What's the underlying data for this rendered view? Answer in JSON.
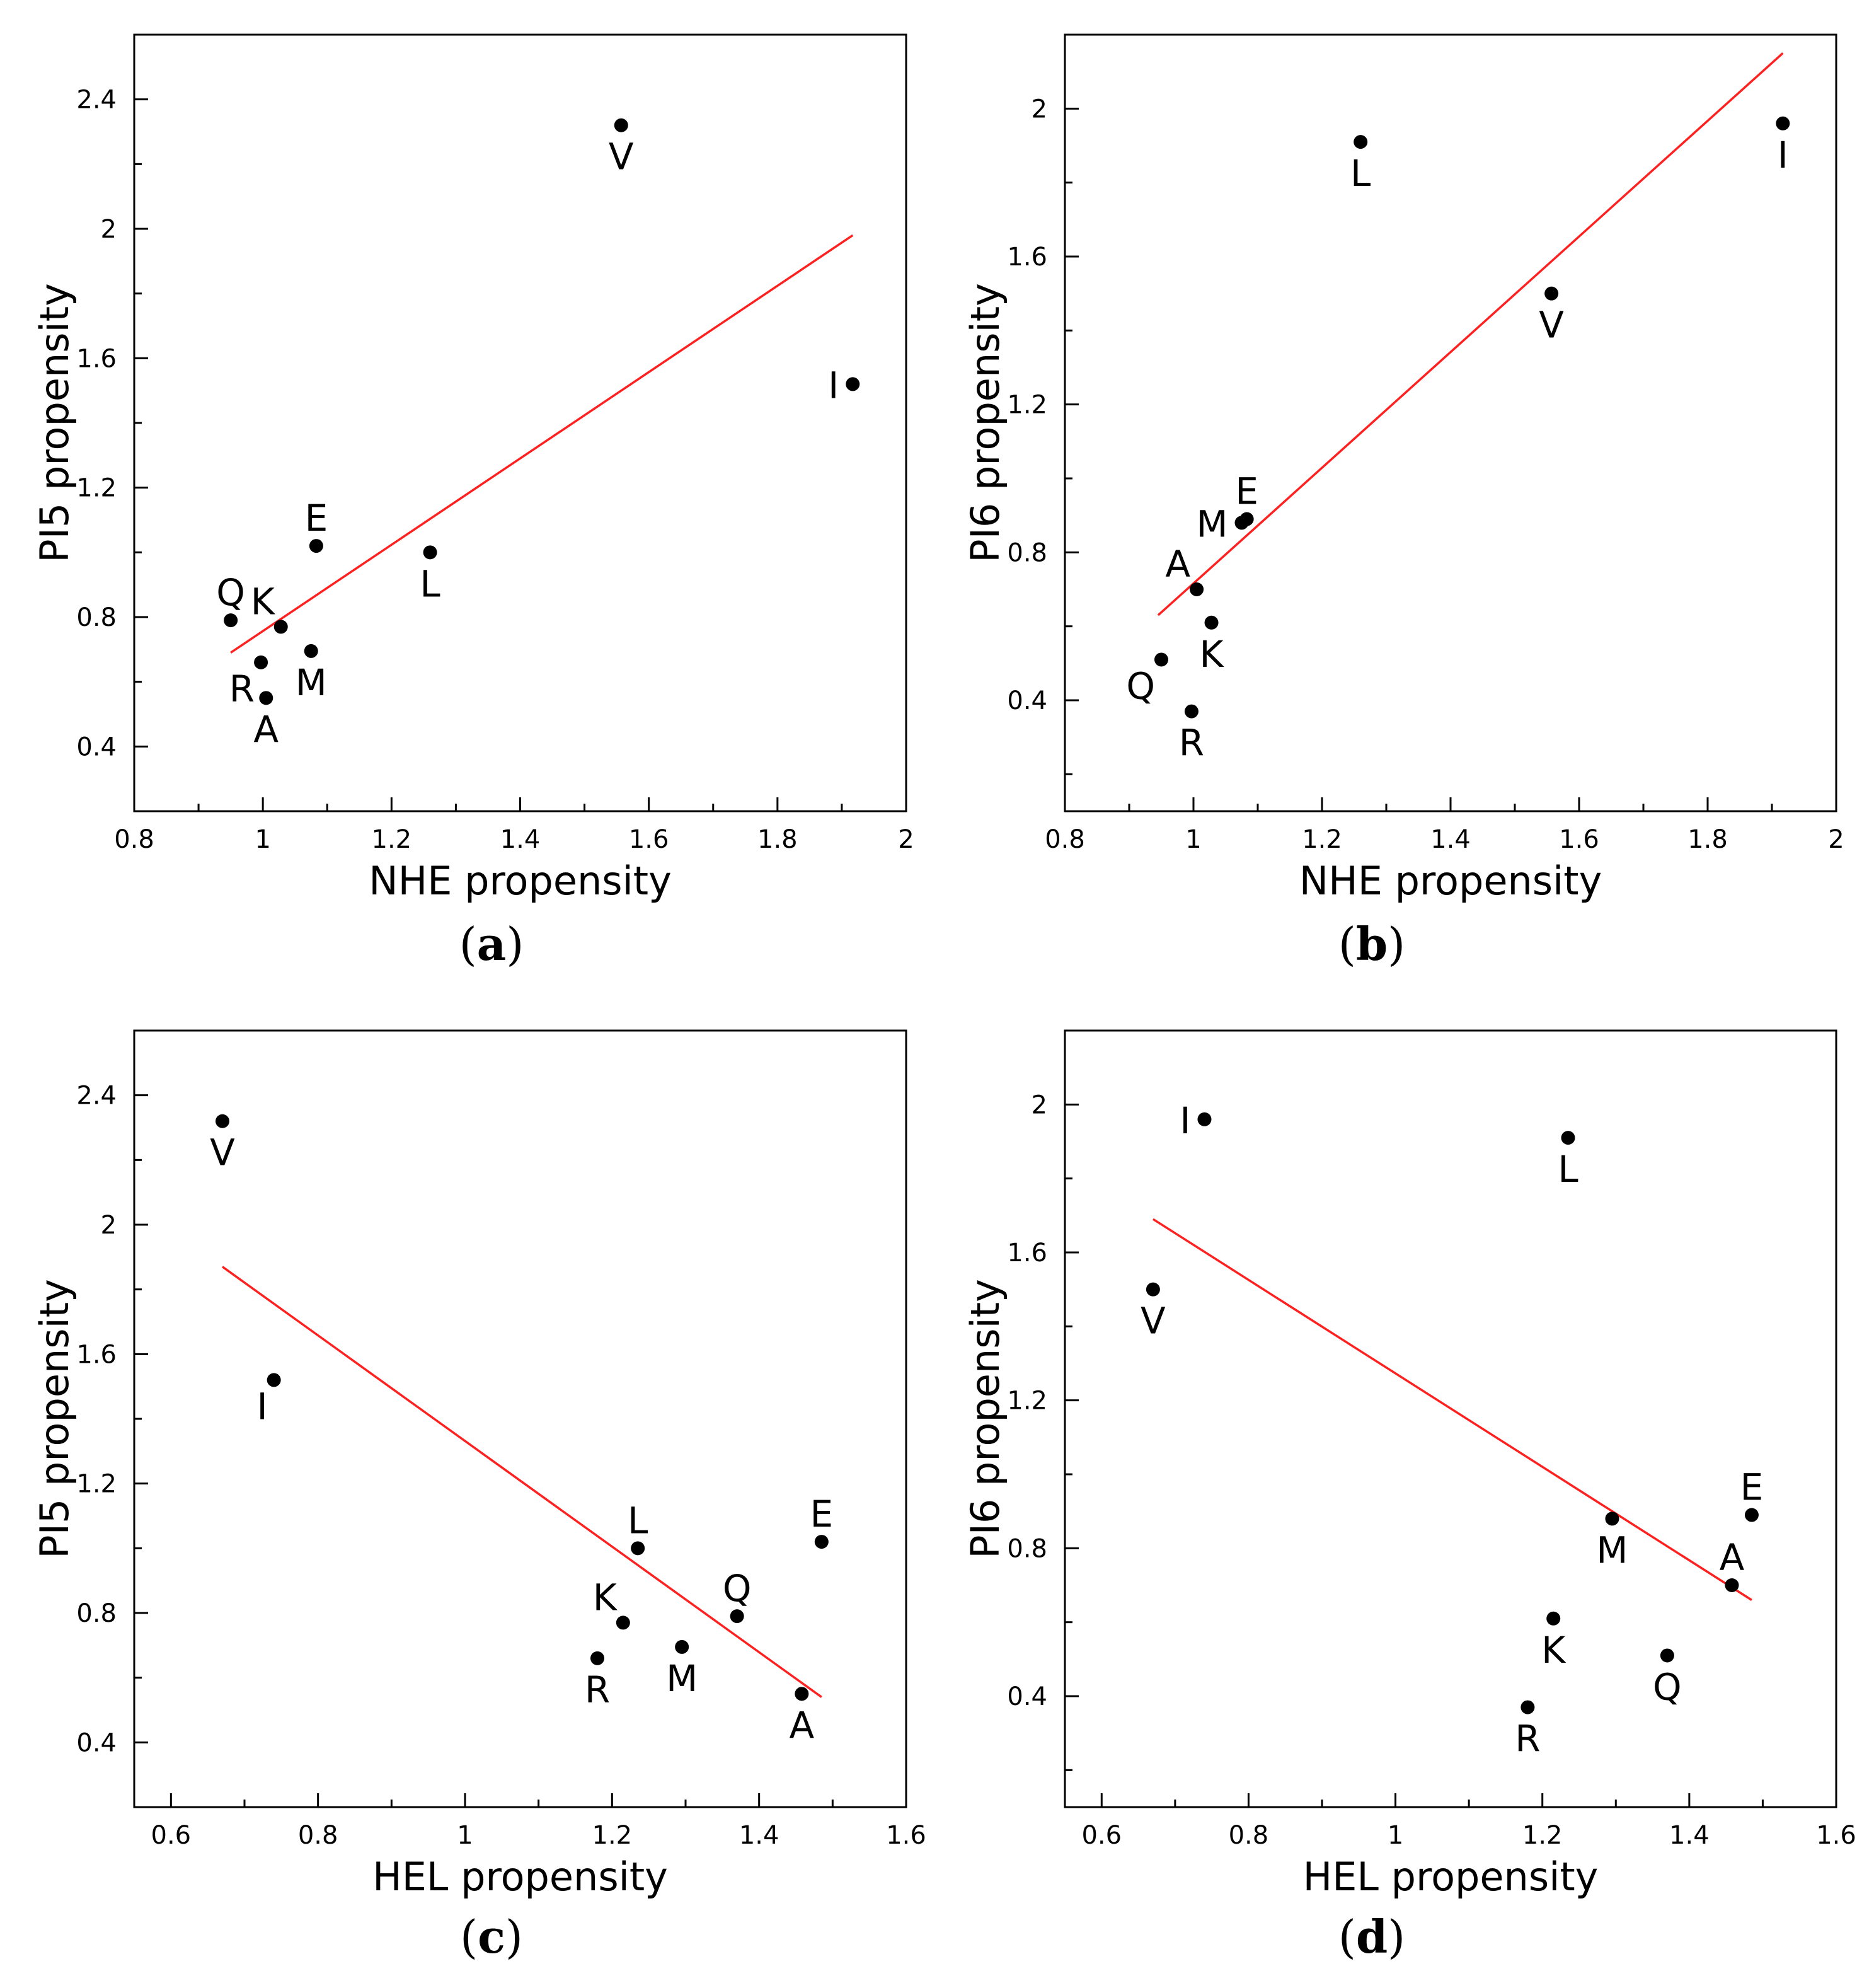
{
  "colors": {
    "fit_line": "#ff2020",
    "points": "#000000",
    "axes": "#000000"
  },
  "chart_data": [
    {
      "type": "scatter",
      "panel_label": "a",
      "xlabel": "NHE propensity",
      "ylabel": "PI5 propensity",
      "xlim": [
        0.8,
        2.0
      ],
      "ylim": [
        0.2,
        2.6
      ],
      "xticks": [
        0.8,
        1.0,
        1.2,
        1.4,
        1.6,
        1.8,
        2.0
      ],
      "xtick_labels": [
        "0.8",
        "1",
        "1.2",
        "1.4",
        "1.6",
        "1.8",
        "2"
      ],
      "yticks": [
        0.4,
        0.8,
        1.2,
        1.6,
        2.0,
        2.4
      ],
      "ytick_labels": [
        "0.4",
        "0.8",
        "1.2",
        "1.6",
        "2",
        "2.4"
      ],
      "points": [
        {
          "label": "V",
          "x": 1.557,
          "y": 2.32,
          "pos": "below"
        },
        {
          "label": "I",
          "x": 1.917,
          "y": 1.52,
          "pos": "left"
        },
        {
          "label": "L",
          "x": 1.26,
          "y": 1.0,
          "pos": "below"
        },
        {
          "label": "E",
          "x": 1.083,
          "y": 1.02,
          "pos": "above"
        },
        {
          "label": "Q",
          "x": 0.95,
          "y": 0.79,
          "pos": "above"
        },
        {
          "label": "K",
          "x": 1.028,
          "y": 0.77,
          "pos": "aboveleft"
        },
        {
          "label": "R",
          "x": 0.997,
          "y": 0.66,
          "pos": "belowleft"
        },
        {
          "label": "M",
          "x": 1.075,
          "y": 0.695,
          "pos": "below"
        },
        {
          "label": "A",
          "x": 1.005,
          "y": 0.55,
          "pos": "below"
        }
      ],
      "fit_line": {
        "x": [
          0.95,
          1.917
        ],
        "y": [
          0.69,
          1.98
        ]
      }
    },
    {
      "type": "scatter",
      "panel_label": "b",
      "xlabel": "NHE propensity",
      "ylabel": "PI6 propensity",
      "xlim": [
        0.8,
        2.0
      ],
      "ylim": [
        0.1,
        2.2
      ],
      "xticks": [
        0.8,
        1.0,
        1.2,
        1.4,
        1.6,
        1.8,
        2.0
      ],
      "xtick_labels": [
        "0.8",
        "1",
        "1.2",
        "1.4",
        "1.6",
        "1.8",
        "2"
      ],
      "yticks": [
        0.4,
        0.8,
        1.2,
        1.6,
        2.0
      ],
      "ytick_labels": [
        "0.4",
        "0.8",
        "1.2",
        "1.6",
        "2"
      ],
      "points": [
        {
          "label": "L",
          "x": 1.26,
          "y": 1.91,
          "pos": "below"
        },
        {
          "label": "I",
          "x": 1.917,
          "y": 1.96,
          "pos": "below"
        },
        {
          "label": "V",
          "x": 1.557,
          "y": 1.5,
          "pos": "below"
        },
        {
          "label": "E",
          "x": 1.083,
          "y": 0.89,
          "pos": "above"
        },
        {
          "label": "M",
          "x": 1.075,
          "y": 0.88,
          "pos": "left"
        },
        {
          "label": "A",
          "x": 1.005,
          "y": 0.7,
          "pos": "aboveleft"
        },
        {
          "label": "K",
          "x": 1.028,
          "y": 0.61,
          "pos": "below"
        },
        {
          "label": "Q",
          "x": 0.95,
          "y": 0.51,
          "pos": "belowleft"
        },
        {
          "label": "R",
          "x": 0.997,
          "y": 0.37,
          "pos": "below"
        }
      ],
      "fit_line": {
        "x": [
          0.945,
          1.917
        ],
        "y": [
          0.63,
          2.15
        ]
      }
    },
    {
      "type": "scatter",
      "panel_label": "c",
      "xlabel": "HEL propensity",
      "ylabel": "PI5 propensity",
      "xlim": [
        0.55,
        1.6
      ],
      "ylim": [
        0.2,
        2.6
      ],
      "xticks": [
        0.6,
        0.8,
        1.0,
        1.2,
        1.4,
        1.6
      ],
      "xtick_labels": [
        "0.6",
        "0.8",
        "1",
        "1.2",
        "1.4",
        "1.6"
      ],
      "yticks": [
        0.4,
        0.8,
        1.2,
        1.6,
        2.0,
        2.4
      ],
      "ytick_labels": [
        "0.4",
        "0.8",
        "1.2",
        "1.6",
        "2",
        "2.4"
      ],
      "points": [
        {
          "label": "V",
          "x": 0.67,
          "y": 2.32,
          "pos": "below"
        },
        {
          "label": "I",
          "x": 0.74,
          "y": 1.52,
          "pos": "belowleft"
        },
        {
          "label": "L",
          "x": 1.235,
          "y": 1.0,
          "pos": "above"
        },
        {
          "label": "E",
          "x": 1.485,
          "y": 1.02,
          "pos": "above"
        },
        {
          "label": "K",
          "x": 1.215,
          "y": 0.77,
          "pos": "aboveleft"
        },
        {
          "label": "Q",
          "x": 1.37,
          "y": 0.79,
          "pos": "above"
        },
        {
          "label": "R",
          "x": 1.18,
          "y": 0.66,
          "pos": "below"
        },
        {
          "label": "M",
          "x": 1.295,
          "y": 0.695,
          "pos": "below"
        },
        {
          "label": "A",
          "x": 1.458,
          "y": 0.55,
          "pos": "below"
        }
      ],
      "fit_line": {
        "x": [
          0.67,
          1.485
        ],
        "y": [
          1.87,
          0.54
        ]
      }
    },
    {
      "type": "scatter",
      "panel_label": "d",
      "xlabel": "HEL propensity",
      "ylabel": "PI6 propensity",
      "xlim": [
        0.55,
        1.6
      ],
      "ylim": [
        0.1,
        2.2
      ],
      "xticks": [
        0.6,
        0.8,
        1.0,
        1.2,
        1.4,
        1.6
      ],
      "xtick_labels": [
        "0.6",
        "0.8",
        "1",
        "1.2",
        "1.4",
        "1.6"
      ],
      "yticks": [
        0.4,
        0.8,
        1.2,
        1.6,
        2.0
      ],
      "ytick_labels": [
        "0.4",
        "0.8",
        "1.2",
        "1.6",
        "2"
      ],
      "points": [
        {
          "label": "I",
          "x": 0.74,
          "y": 1.96,
          "pos": "left"
        },
        {
          "label": "L",
          "x": 1.235,
          "y": 1.91,
          "pos": "below"
        },
        {
          "label": "V",
          "x": 0.67,
          "y": 1.5,
          "pos": "below"
        },
        {
          "label": "E",
          "x": 1.485,
          "y": 0.89,
          "pos": "above"
        },
        {
          "label": "M",
          "x": 1.295,
          "y": 0.88,
          "pos": "below"
        },
        {
          "label": "A",
          "x": 1.458,
          "y": 0.7,
          "pos": "above"
        },
        {
          "label": "K",
          "x": 1.215,
          "y": 0.61,
          "pos": "below"
        },
        {
          "label": "Q",
          "x": 1.37,
          "y": 0.51,
          "pos": "below"
        },
        {
          "label": "R",
          "x": 1.18,
          "y": 0.37,
          "pos": "below"
        }
      ],
      "fit_line": {
        "x": [
          0.67,
          1.485
        ],
        "y": [
          1.69,
          0.66
        ]
      }
    }
  ]
}
